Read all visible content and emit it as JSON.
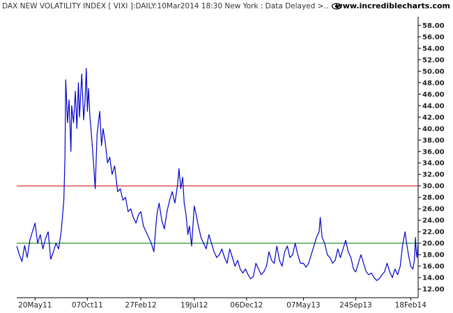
{
  "header": {
    "title": "DAX NEW VOLATILITY INDEX [ VIXI ]:DAILY:10Mar2014 18:30 New York : Data Delayed >..",
    "site": "www.incrediblecharts.com",
    "site_icon": "eye-logo-icon"
  },
  "colors": {
    "series": "#0000cc",
    "upper_line": "#cc0000",
    "lower_line": "#007700",
    "axis": "#000000"
  },
  "chart_data": {
    "type": "line",
    "title": "DAX NEW VOLATILITY INDEX [ VIXI ]:DAILY:10Mar2014 18:30 New York : Data Delayed >..",
    "xlabel": "",
    "ylabel": "",
    "ylim": [
      10.5,
      59.5
    ],
    "grid": false,
    "y_ticks": [
      "12.00",
      "14.00",
      "16.00",
      "18.00",
      "20.00",
      "22.00",
      "24.00",
      "26.00",
      "28.00",
      "30.00",
      "32.00",
      "34.00",
      "36.00",
      "38.00",
      "40.00",
      "42.00",
      "44.00",
      "46.00",
      "48.00",
      "50.00",
      "52.00",
      "54.00",
      "56.00",
      "58.00"
    ],
    "x_ticks": [
      {
        "label": "20May11",
        "date": "2011-05-20"
      },
      {
        "label": "07Oct11",
        "date": "2011-10-07"
      },
      {
        "label": "27Feb12",
        "date": "2012-02-27"
      },
      {
        "label": "19Jul12",
        "date": "2012-07-19"
      },
      {
        "label": "06Dec12",
        "date": "2012-12-06"
      },
      {
        "label": "07May13",
        "date": "2013-05-07"
      },
      {
        "label": "24Sep13",
        "date": "2013-09-24"
      },
      {
        "label": "18Feb14",
        "date": "2014-02-18"
      }
    ],
    "x_range": [
      "2011-04-01",
      "2014-03-10"
    ],
    "reference_lines": [
      {
        "value": 30,
        "color": "#cc0000"
      },
      {
        "value": 20,
        "color": "#007700"
      }
    ],
    "series": [
      {
        "points": [
          [
            "2011-04-01",
            19.5
          ],
          [
            "2011-04-08",
            18.0
          ],
          [
            "2011-04-15",
            16.8
          ],
          [
            "2011-04-22",
            19.6
          ],
          [
            "2011-04-29",
            17.5
          ],
          [
            "2011-05-06",
            20.5
          ],
          [
            "2011-05-13",
            22.0
          ],
          [
            "2011-05-20",
            23.5
          ],
          [
            "2011-05-27",
            20.0
          ],
          [
            "2011-06-03",
            21.5
          ],
          [
            "2011-06-10",
            19.0
          ],
          [
            "2011-06-17",
            20.8
          ],
          [
            "2011-06-24",
            22.0
          ],
          [
            "2011-07-01",
            17.2
          ],
          [
            "2011-07-08",
            18.5
          ],
          [
            "2011-07-15",
            20.0
          ],
          [
            "2011-07-22",
            19.0
          ],
          [
            "2011-07-29",
            22.0
          ],
          [
            "2011-08-05",
            27.5
          ],
          [
            "2011-08-08",
            35.0
          ],
          [
            "2011-08-10",
            48.5
          ],
          [
            "2011-08-15",
            41.0
          ],
          [
            "2011-08-19",
            45.0
          ],
          [
            "2011-08-24",
            36.0
          ],
          [
            "2011-08-26",
            44.0
          ],
          [
            "2011-08-31",
            41.0
          ],
          [
            "2011-09-05",
            46.5
          ],
          [
            "2011-09-09",
            40.0
          ],
          [
            "2011-09-13",
            48.0
          ],
          [
            "2011-09-16",
            42.0
          ],
          [
            "2011-09-22",
            49.5
          ],
          [
            "2011-09-27",
            41.5
          ],
          [
            "2011-10-01",
            45.0
          ],
          [
            "2011-10-04",
            50.5
          ],
          [
            "2011-10-07",
            43.0
          ],
          [
            "2011-10-10",
            47.0
          ],
          [
            "2011-10-14",
            42.0
          ],
          [
            "2011-10-19",
            38.0
          ],
          [
            "2011-10-24",
            33.5
          ],
          [
            "2011-10-28",
            29.5
          ],
          [
            "2011-11-02",
            39.0
          ],
          [
            "2011-11-09",
            43.0
          ],
          [
            "2011-11-14",
            37.0
          ],
          [
            "2011-11-18",
            40.0
          ],
          [
            "2011-11-24",
            37.5
          ],
          [
            "2011-11-30",
            34.0
          ],
          [
            "2011-12-06",
            35.0
          ],
          [
            "2011-12-12",
            32.0
          ],
          [
            "2011-12-19",
            33.5
          ],
          [
            "2011-12-27",
            29.0
          ],
          [
            "2012-01-03",
            29.5
          ],
          [
            "2012-01-10",
            27.5
          ],
          [
            "2012-01-17",
            28.0
          ],
          [
            "2012-01-24",
            25.5
          ],
          [
            "2012-01-31",
            26.0
          ],
          [
            "2012-02-07",
            24.5
          ],
          [
            "2012-02-14",
            23.5
          ],
          [
            "2012-02-21",
            25.0
          ],
          [
            "2012-02-27",
            25.5
          ],
          [
            "2012-03-05",
            23.0
          ],
          [
            "2012-03-12",
            22.0
          ],
          [
            "2012-03-19",
            21.0
          ],
          [
            "2012-03-26",
            20.0
          ],
          [
            "2012-04-02",
            18.5
          ],
          [
            "2012-04-05",
            21.0
          ],
          [
            "2012-04-10",
            25.0
          ],
          [
            "2012-04-16",
            27.0
          ],
          [
            "2012-04-23",
            24.0
          ],
          [
            "2012-04-30",
            22.5
          ],
          [
            "2012-05-07",
            25.5
          ],
          [
            "2012-05-14",
            27.5
          ],
          [
            "2012-05-21",
            29.0
          ],
          [
            "2012-05-28",
            27.0
          ],
          [
            "2012-06-04",
            30.0
          ],
          [
            "2012-06-08",
            33.0
          ],
          [
            "2012-06-13",
            29.5
          ],
          [
            "2012-06-18",
            31.5
          ],
          [
            "2012-06-22",
            27.0
          ],
          [
            "2012-06-27",
            25.0
          ],
          [
            "2012-07-02",
            21.5
          ],
          [
            "2012-07-06",
            23.0
          ],
          [
            "2012-07-12",
            19.5
          ],
          [
            "2012-07-19",
            26.5
          ],
          [
            "2012-07-24",
            25.0
          ],
          [
            "2012-07-30",
            23.0
          ],
          [
            "2012-08-06",
            21.0
          ],
          [
            "2012-08-13",
            20.0
          ],
          [
            "2012-08-20",
            19.0
          ],
          [
            "2012-08-27",
            21.5
          ],
          [
            "2012-09-03",
            20.0
          ],
          [
            "2012-09-10",
            18.5
          ],
          [
            "2012-09-17",
            17.5
          ],
          [
            "2012-09-24",
            18.0
          ],
          [
            "2012-10-01",
            19.0
          ],
          [
            "2012-10-08",
            17.5
          ],
          [
            "2012-10-15",
            16.5
          ],
          [
            "2012-10-22",
            19.0
          ],
          [
            "2012-10-29",
            17.5
          ],
          [
            "2012-11-05",
            16.0
          ],
          [
            "2012-11-12",
            17.0
          ],
          [
            "2012-11-19",
            15.5
          ],
          [
            "2012-11-26",
            14.8
          ],
          [
            "2012-12-03",
            15.5
          ],
          [
            "2012-12-10",
            14.5
          ],
          [
            "2012-12-17",
            13.8
          ],
          [
            "2012-12-24",
            14.2
          ],
          [
            "2012-12-31",
            16.5
          ],
          [
            "2013-01-07",
            15.5
          ],
          [
            "2013-01-14",
            14.5
          ],
          [
            "2013-01-21",
            15.0
          ],
          [
            "2013-01-28",
            16.0
          ],
          [
            "2013-02-04",
            18.5
          ],
          [
            "2013-02-11",
            17.0
          ],
          [
            "2013-02-18",
            16.5
          ],
          [
            "2013-02-25",
            19.5
          ],
          [
            "2013-03-04",
            17.0
          ],
          [
            "2013-03-11",
            16.0
          ],
          [
            "2013-03-18",
            18.5
          ],
          [
            "2013-03-25",
            19.5
          ],
          [
            "2013-04-01",
            17.5
          ],
          [
            "2013-04-08",
            18.0
          ],
          [
            "2013-04-15",
            20.0
          ],
          [
            "2013-04-22",
            18.0
          ],
          [
            "2013-04-29",
            16.5
          ],
          [
            "2013-05-07",
            16.5
          ],
          [
            "2013-05-14",
            15.8
          ],
          [
            "2013-05-21",
            16.5
          ],
          [
            "2013-05-28",
            18.0
          ],
          [
            "2013-06-04",
            19.5
          ],
          [
            "2013-06-11",
            21.0
          ],
          [
            "2013-06-18",
            22.0
          ],
          [
            "2013-06-21",
            24.5
          ],
          [
            "2013-06-26",
            21.0
          ],
          [
            "2013-07-03",
            20.0
          ],
          [
            "2013-07-10",
            18.0
          ],
          [
            "2013-07-17",
            17.5
          ],
          [
            "2013-07-24",
            16.5
          ],
          [
            "2013-07-31",
            17.0
          ],
          [
            "2013-08-07",
            19.0
          ],
          [
            "2013-08-14",
            17.5
          ],
          [
            "2013-08-21",
            19.0
          ],
          [
            "2013-08-28",
            20.5
          ],
          [
            "2013-09-04",
            18.5
          ],
          [
            "2013-09-11",
            17.5
          ],
          [
            "2013-09-18",
            15.5
          ],
          [
            "2013-09-24",
            15.0
          ],
          [
            "2013-10-01",
            16.5
          ],
          [
            "2013-10-08",
            18.0
          ],
          [
            "2013-10-15",
            16.5
          ],
          [
            "2013-10-22",
            15.0
          ],
          [
            "2013-10-29",
            14.5
          ],
          [
            "2013-11-05",
            14.8
          ],
          [
            "2013-11-12",
            14.0
          ],
          [
            "2013-11-19",
            13.5
          ],
          [
            "2013-11-26",
            13.8
          ],
          [
            "2013-12-03",
            14.5
          ],
          [
            "2013-12-10",
            15.0
          ],
          [
            "2013-12-17",
            16.5
          ],
          [
            "2013-12-24",
            15.0
          ],
          [
            "2013-12-31",
            14.0
          ],
          [
            "2014-01-07",
            15.5
          ],
          [
            "2014-01-14",
            14.5
          ],
          [
            "2014-01-21",
            16.0
          ],
          [
            "2014-01-27",
            19.5
          ],
          [
            "2014-02-03",
            22.0
          ],
          [
            "2014-02-07",
            20.0
          ],
          [
            "2014-02-12",
            18.0
          ],
          [
            "2014-02-18",
            16.0
          ],
          [
            "2014-02-24",
            15.5
          ],
          [
            "2014-02-28",
            17.0
          ],
          [
            "2014-03-03",
            21.0
          ],
          [
            "2014-03-05",
            18.5
          ],
          [
            "2014-03-07",
            17.5
          ],
          [
            "2014-03-10",
            20.0
          ]
        ]
      }
    ]
  }
}
